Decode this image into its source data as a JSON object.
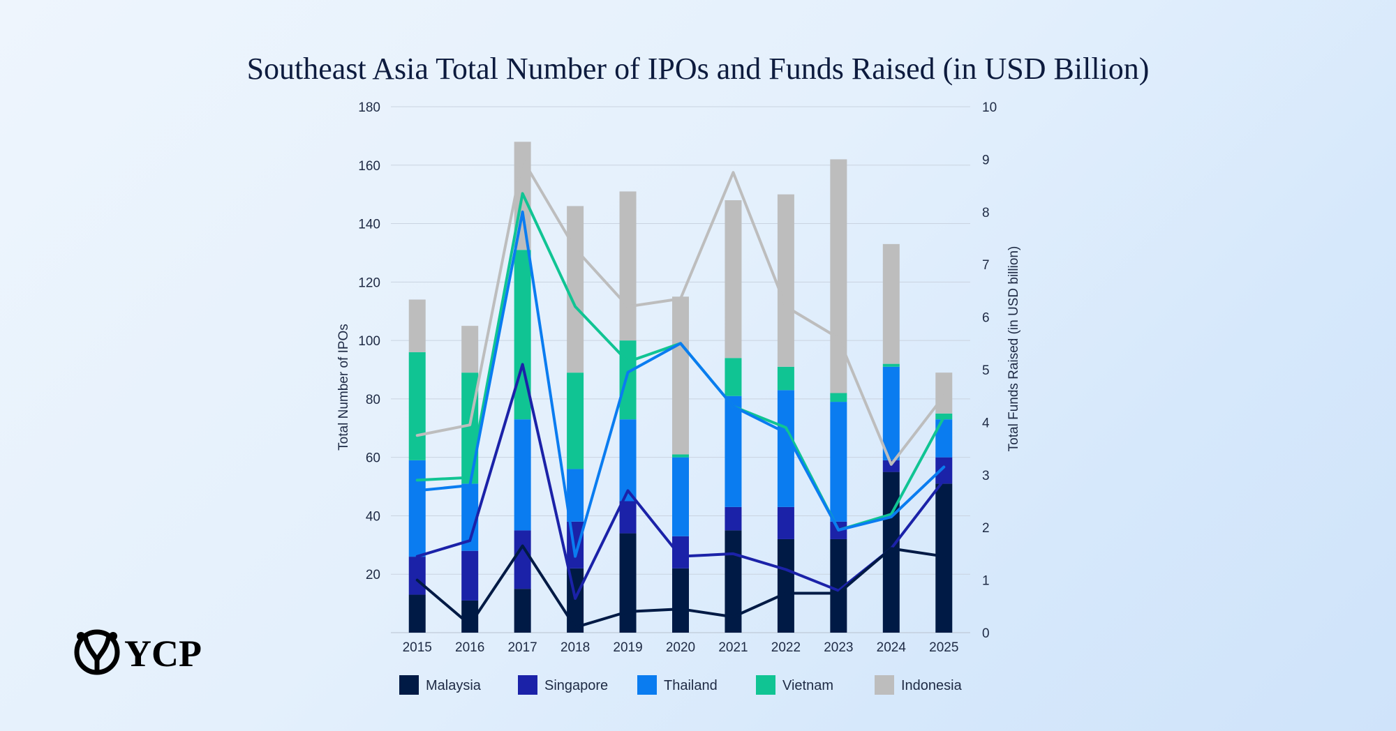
{
  "brand": {
    "logo_text": "YCP",
    "logo_icon": "ycp-emblem-icon"
  },
  "chart_data": {
    "type": "bar",
    "stacked": true,
    "title": "Southeast Asia Total Number of IPOs and Funds Raised (in USD Billion)",
    "categories": [
      "2015",
      "2016",
      "2017",
      "2018",
      "2019",
      "2020",
      "2021",
      "2022",
      "2023",
      "2024",
      "2025"
    ],
    "y_left": {
      "label": "Total Number of IPOs",
      "min": 0,
      "max": 180,
      "ticks": [
        20,
        40,
        60,
        80,
        100,
        120,
        140,
        160,
        180
      ]
    },
    "y_right": {
      "label": "Total Funds Raised (in USD billion)",
      "min": 0,
      "max": 10,
      "ticks": [
        0,
        1,
        2,
        3,
        4,
        5,
        6,
        7,
        8,
        9,
        10
      ]
    },
    "grid": true,
    "legend_position": "bottom",
    "series": [
      {
        "name": "Malaysia",
        "color": "#001a45",
        "values": [
          13,
          11,
          15,
          22,
          34,
          22,
          35,
          32,
          32,
          55,
          51
        ]
      },
      {
        "name": "Singapore",
        "color": "#1b22a8",
        "values": [
          13,
          17,
          20,
          16,
          11,
          11,
          8,
          11,
          6,
          4,
          9
        ]
      },
      {
        "name": "Thailand",
        "color": "#0a7cf0",
        "values": [
          33,
          23,
          38,
          18,
          28,
          27,
          38,
          40,
          41,
          32,
          13
        ]
      },
      {
        "name": "Vietnam",
        "color": "#10c493",
        "values": [
          37,
          38,
          58,
          33,
          27,
          1,
          13,
          8,
          3,
          1,
          2
        ]
      },
      {
        "name": "Indonesia",
        "color": "#bdbdbd",
        "values": [
          18,
          16,
          37,
          57,
          51,
          54,
          54,
          59,
          80,
          41,
          14
        ]
      }
    ],
    "lines": [
      {
        "name": "Malaysia",
        "color": "#001a45",
        "values": [
          1.0,
          0.15,
          1.65,
          0.1,
          0.4,
          0.45,
          0.3,
          0.75,
          0.75,
          1.6,
          1.45
        ]
      },
      {
        "name": "Singapore",
        "color": "#1b22a8",
        "values": [
          1.45,
          1.75,
          5.1,
          0.65,
          2.7,
          1.45,
          1.5,
          1.2,
          0.8,
          1.6,
          2.9
        ]
      },
      {
        "name": "Thailand",
        "color": "#0a7cf0",
        "values": [
          2.7,
          2.8,
          8.0,
          1.45,
          4.95,
          5.5,
          4.3,
          3.8,
          1.95,
          2.2,
          3.15
        ]
      },
      {
        "name": "Vietnam",
        "color": "#10c493",
        "values": [
          2.9,
          2.95,
          8.35,
          6.2,
          5.15,
          5.5,
          4.3,
          3.9,
          1.95,
          2.25,
          4.1
        ]
      },
      {
        "name": "Indonesia",
        "color": "#bdbdbd",
        "values": [
          3.75,
          3.95,
          9.0,
          7.3,
          6.2,
          6.35,
          8.75,
          6.2,
          5.6,
          3.2,
          4.5
        ]
      }
    ]
  }
}
